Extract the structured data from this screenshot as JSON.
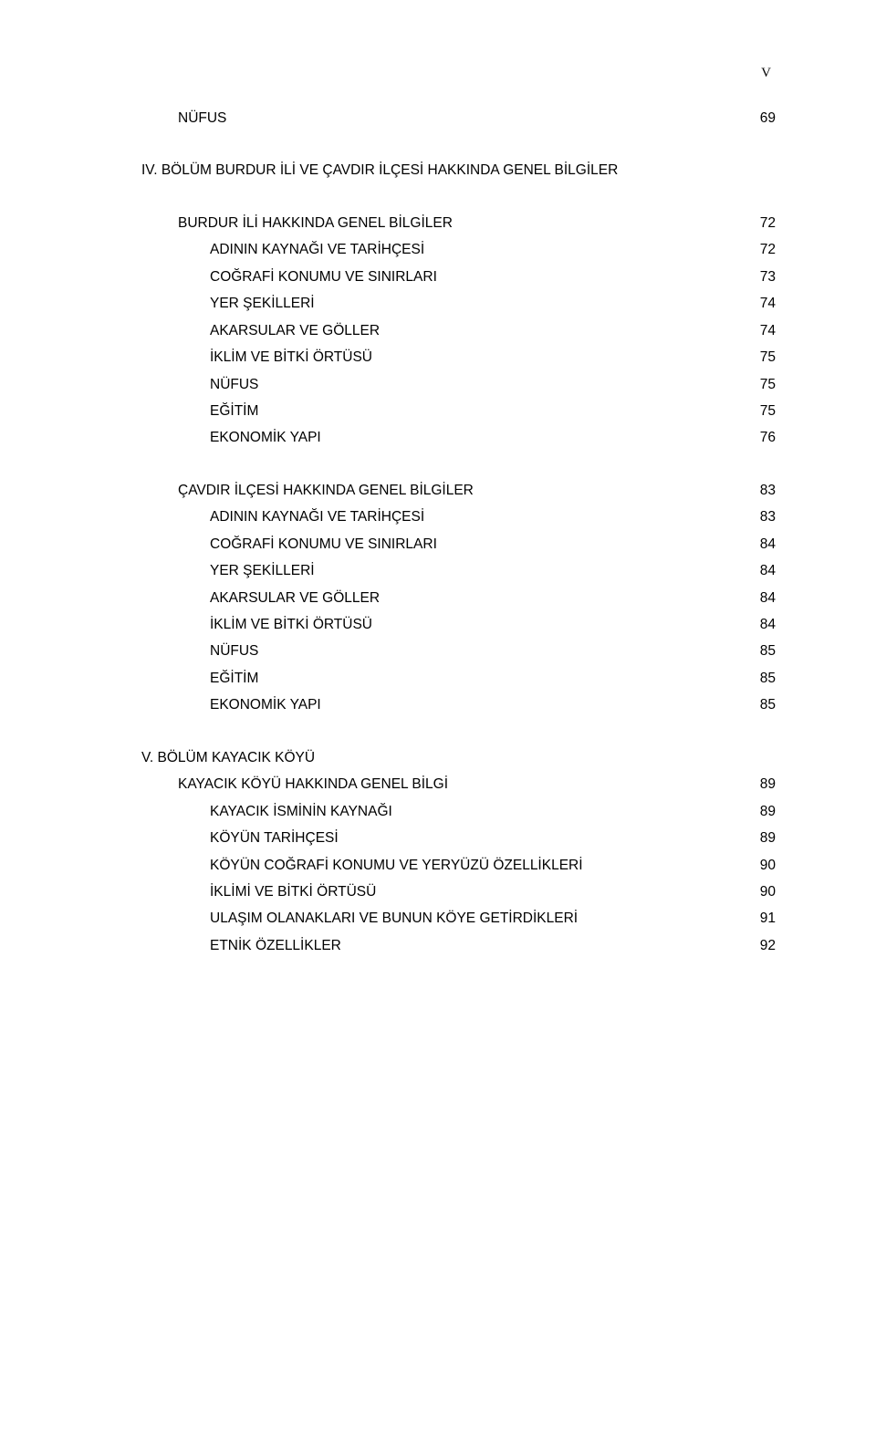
{
  "page_marker": "V",
  "entries": [
    {
      "label": "NÜFUS",
      "page": "69",
      "indent": 1,
      "gap_before": false
    },
    {
      "label": "IV. BÖLÜM BURDUR İLİ VE ÇAVDIR İLÇESİ HAKKINDA GENEL BİLGİLER",
      "page": "",
      "indent": 0,
      "gap_before": true,
      "heading": true
    },
    {
      "label": "BURDUR İLİ HAKKINDA GENEL BİLGİLER",
      "page": "72",
      "indent": 1,
      "gap_before": true
    },
    {
      "label": "ADININ KAYNAĞI VE TARİHÇESİ",
      "page": "72",
      "indent": 2,
      "gap_before": false
    },
    {
      "label": "COĞRAFİ KONUMU VE SINIRLARI",
      "page": "73",
      "indent": 2,
      "gap_before": false
    },
    {
      "label": "YER ŞEKİLLERİ",
      "page": "74",
      "indent": 2,
      "gap_before": false
    },
    {
      "label": "AKARSULAR VE GÖLLER",
      "page": "74",
      "indent": 2,
      "gap_before": false
    },
    {
      "label": "İKLİM VE BİTKİ ÖRTÜSÜ",
      "page": "75",
      "indent": 2,
      "gap_before": false
    },
    {
      "label": "NÜFUS",
      "page": "75",
      "indent": 2,
      "gap_before": false
    },
    {
      "label": "EĞİTİM",
      "page": "75",
      "indent": 2,
      "gap_before": false
    },
    {
      "label": "EKONOMİK YAPI",
      "page": "76",
      "indent": 2,
      "gap_before": false
    },
    {
      "label": "ÇAVDIR İLÇESİ HAKKINDA GENEL BİLGİLER",
      "page": "83",
      "indent": 1,
      "gap_before": true
    },
    {
      "label": "ADININ KAYNAĞI VE TARİHÇESİ",
      "page": "83",
      "indent": 2,
      "gap_before": false
    },
    {
      "label": "COĞRAFİ KONUMU VE SINIRLARI",
      "page": "84",
      "indent": 2,
      "gap_before": false
    },
    {
      "label": "YER ŞEKİLLERİ",
      "page": "84",
      "indent": 2,
      "gap_before": false
    },
    {
      "label": "AKARSULAR VE GÖLLER",
      "page": "84",
      "indent": 2,
      "gap_before": false
    },
    {
      "label": "İKLİM VE BİTKİ ÖRTÜSÜ",
      "page": "84",
      "indent": 2,
      "gap_before": false
    },
    {
      "label": "NÜFUS",
      "page": "85",
      "indent": 2,
      "gap_before": false
    },
    {
      "label": "EĞİTİM",
      "page": "85",
      "indent": 2,
      "gap_before": false
    },
    {
      "label": "EKONOMİK YAPI",
      "page": "85",
      "indent": 2,
      "gap_before": false
    },
    {
      "label": "V. BÖLÜM  KAYACIK KÖYÜ",
      "page": "",
      "indent": 0,
      "gap_before": true,
      "heading": true
    },
    {
      "label": "KAYACIK KÖYÜ HAKKINDA GENEL BİLGİ",
      "page": "89",
      "indent": 1,
      "gap_before": false
    },
    {
      "label": "KAYACIK İSMİNİN KAYNAĞI",
      "page": "89",
      "indent": 2,
      "gap_before": false
    },
    {
      "label": "KÖYÜN TARİHÇESİ",
      "page": "89",
      "indent": 2,
      "gap_before": false
    },
    {
      "label": "KÖYÜN COĞRAFİ KONUMU VE YERYÜZÜ ÖZELLİKLERİ",
      "page": "90",
      "indent": 2,
      "gap_before": false
    },
    {
      "label": "İKLİMİ VE BİTKİ ÖRTÜSÜ",
      "page": "90",
      "indent": 2,
      "gap_before": false
    },
    {
      "label": "ULAŞIM OLANAKLARI VE BUNUN KÖYE GETİRDİKLERİ",
      "page": "91",
      "indent": 2,
      "gap_before": false
    },
    {
      "label": "ETNİK ÖZELLİKLER",
      "page": "92",
      "indent": 2,
      "gap_before": false
    }
  ]
}
